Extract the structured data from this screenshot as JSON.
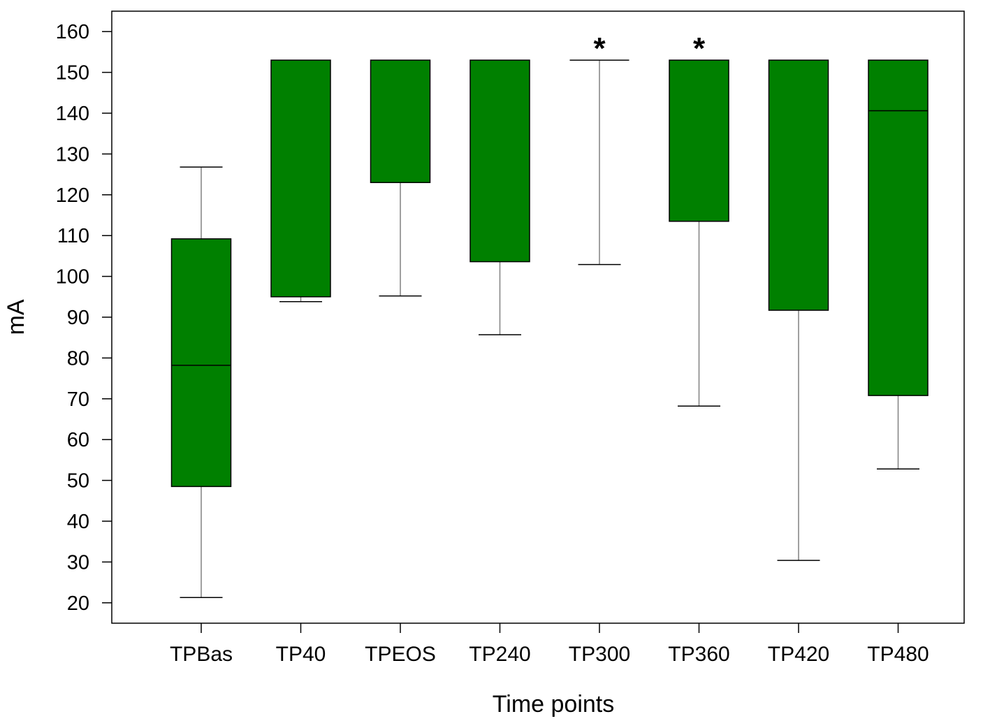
{
  "chart_data": {
    "type": "box",
    "xlabel": "Time points",
    "ylabel": "mA",
    "ylim": [
      15,
      165
    ],
    "yticks": [
      20,
      30,
      40,
      50,
      60,
      70,
      80,
      90,
      100,
      110,
      120,
      130,
      140,
      150,
      160
    ],
    "grid": false,
    "categories": [
      "TPBas",
      "TP40",
      "TPEOS",
      "TP240",
      "TP300",
      "TP360",
      "TP420",
      "TP480"
    ],
    "boxes": [
      {
        "category": "TPBas",
        "whisker_low": 21.3,
        "q1": 48.5,
        "median": 78.2,
        "q3": 109.2,
        "whisker_high": 126.8
      },
      {
        "category": "TP40",
        "whisker_low": 93.8,
        "q1": 95.0,
        "median": null,
        "q3": 153.0,
        "whisker_high": 153.0
      },
      {
        "category": "TPEOS",
        "whisker_low": 95.2,
        "q1": 123.0,
        "median": null,
        "q3": 153.0,
        "whisker_high": 153.0
      },
      {
        "category": "TP240",
        "whisker_low": 85.7,
        "q1": 103.6,
        "median": null,
        "q3": 153.0,
        "whisker_high": 153.0
      },
      {
        "category": "TP300",
        "whisker_low": 102.9,
        "q1": 153.0,
        "median": 153.0,
        "q3": 153.0,
        "whisker_high": 153.0
      },
      {
        "category": "TP360",
        "whisker_low": 68.2,
        "q1": 113.5,
        "median": null,
        "q3": 153.0,
        "whisker_high": 153.0
      },
      {
        "category": "TP420",
        "whisker_low": 30.4,
        "q1": 91.7,
        "median": null,
        "q3": 153.0,
        "whisker_high": 153.0
      },
      {
        "category": "TP480",
        "whisker_low": 52.8,
        "q1": 70.8,
        "median": 140.6,
        "q3": 153.0,
        "whisker_high": 153.0
      }
    ],
    "annotations": [
      {
        "category": "TP300",
        "text": "*"
      },
      {
        "category": "TP360",
        "text": "*"
      }
    ],
    "colors": {
      "box_fill": "#008000",
      "box_stroke": "#000000",
      "whisker": "#808080",
      "axis": "#000000"
    }
  }
}
